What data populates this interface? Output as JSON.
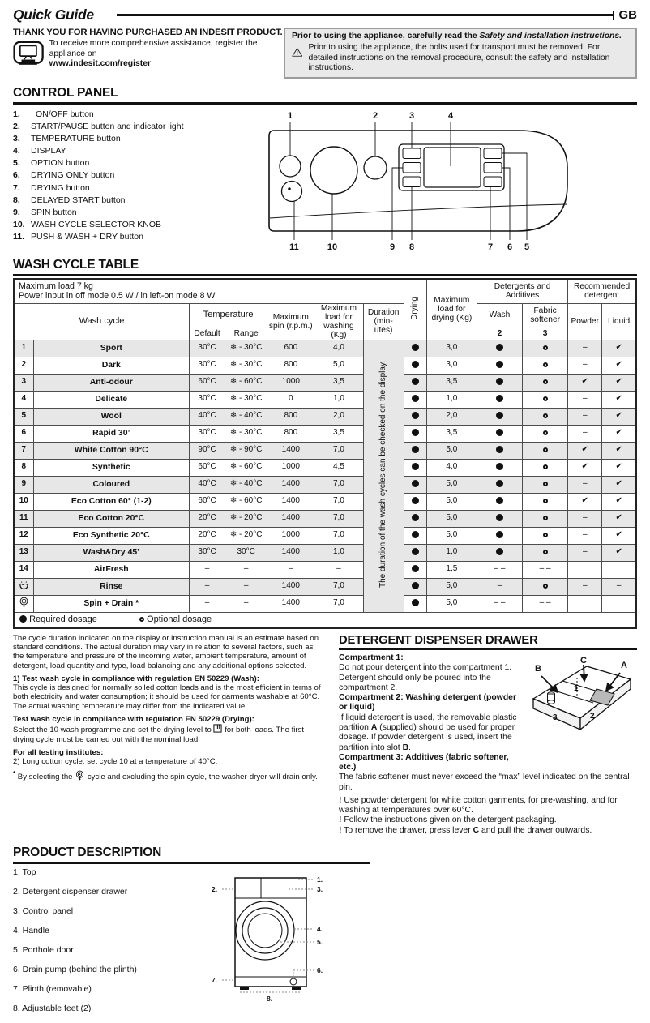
{
  "page": {
    "title": "Quick Guide",
    "region": "GB"
  },
  "intro": {
    "heading": "THANK YOU FOR HAVING PURCHASED AN INDESIT PRODUCT.",
    "register_text": "To receive more comprehensive assistance, register the appliance on",
    "register_url": "www.indesit.com/register"
  },
  "warning_box": {
    "line1_normal": "Prior to using the appliance, carefully read the ",
    "line1_italic": "Safety and installation instructions.",
    "line2": "Prior to using the appliance, the bolts used for transport must be removed. For detailed instructions on the removal procedure, consult the safety and installation instructions."
  },
  "control_panel": {
    "heading": "CONTROL PANEL",
    "items": [
      {
        "num": "1.",
        "label": "ON/OFF button"
      },
      {
        "num": "2.",
        "label": "START/PAUSE button and indicator light"
      },
      {
        "num": "3.",
        "label": "TEMPERATURE button"
      },
      {
        "num": "4.",
        "label": "DISPLAY"
      },
      {
        "num": "5.",
        "label": "OPTION button"
      },
      {
        "num": "6.",
        "label": "DRYING ONLY button"
      },
      {
        "num": "7.",
        "label": "DRYING button"
      },
      {
        "num": "8.",
        "label": "DELAYED START button"
      },
      {
        "num": "9.",
        "label": "SPIN button"
      },
      {
        "num": "10.",
        "label": "WASH CYCLE SELECTOR KNOB"
      },
      {
        "num": "11.",
        "label": "PUSH & WASH + DRY button"
      }
    ],
    "diagram_labels_top": [
      "1",
      "2",
      "3",
      "4"
    ],
    "diagram_labels_bottom": [
      "11",
      "10",
      "9",
      "8",
      "7",
      "6",
      "5"
    ]
  },
  "wash_table": {
    "heading": "WASH CYCLE TABLE",
    "banner": [
      "Maximum load 7 kg",
      "Power input in off mode 0.5 W / in left-on mode 8 W"
    ],
    "headers": {
      "wash_cycle": "Wash cycle",
      "temperature": "Temperature",
      "default": "Default",
      "range": "Range",
      "spin": "Maximum spin (r.p.m.)",
      "load_washing": "Maximum load for washing (Kg)",
      "duration": "Duration (min- utes)",
      "drying": "Drying",
      "load_drying": "Maximum load for drying (Kg)",
      "detergents": "Detergents and Additives",
      "wash": "Wash",
      "softener": "Fabric softener",
      "wash_num": "2",
      "softener_num": "3",
      "recommended": "Recommended detergent",
      "powder": "Powder",
      "liquid": "Liquid"
    },
    "duration_note": "The duration of the wash cycles can be checked on the display.",
    "rows": [
      {
        "num": "1",
        "name": "Sport",
        "default": "30°C",
        "range": "❄ - 30°C",
        "spin": "600",
        "load_wash": "4,0",
        "drying": "●",
        "load_dry": "3,0",
        "wash": "●",
        "softener": "○",
        "powder": "–",
        "liquid": "✔"
      },
      {
        "num": "2",
        "name": "Dark",
        "default": "30°C",
        "range": "❄ - 30°C",
        "spin": "800",
        "load_wash": "5,0",
        "drying": "●",
        "load_dry": "3,0",
        "wash": "●",
        "softener": "○",
        "powder": "–",
        "liquid": "✔"
      },
      {
        "num": "3",
        "name": "Anti-odour",
        "default": "60°C",
        "range": "❄ - 60°C",
        "spin": "1000",
        "load_wash": "3,5",
        "drying": "●",
        "load_dry": "3,5",
        "wash": "●",
        "softener": "○",
        "powder": "✔",
        "liquid": "✔"
      },
      {
        "num": "4",
        "name": "Delicate",
        "default": "30°C",
        "range": "❄ - 30°C",
        "spin": "0",
        "load_wash": "1,0",
        "drying": "●",
        "load_dry": "1,0",
        "wash": "●",
        "softener": "○",
        "powder": "–",
        "liquid": "✔"
      },
      {
        "num": "5",
        "name": "Wool",
        "default": "40°C",
        "range": "❄ - 40°C",
        "spin": "800",
        "load_wash": "2,0",
        "drying": "●",
        "load_dry": "2,0",
        "wash": "●",
        "softener": "○",
        "powder": "–",
        "liquid": "✔"
      },
      {
        "num": "6",
        "name": "Rapid 30’",
        "default": "30°C",
        "range": "❄ - 30°C",
        "spin": "800",
        "load_wash": "3,5",
        "drying": "●",
        "load_dry": "3,5",
        "wash": "●",
        "softener": "○",
        "powder": "–",
        "liquid": "✔"
      },
      {
        "num": "7",
        "name": "White Cotton 90°C",
        "default": "90°C",
        "range": "❄ - 90°C",
        "spin": "1400",
        "load_wash": "7,0",
        "drying": "●",
        "load_dry": "5,0",
        "wash": "●",
        "softener": "○",
        "powder": "✔",
        "liquid": "✔"
      },
      {
        "num": "8",
        "name": "Synthetic",
        "default": "60°C",
        "range": "❄ - 60°C",
        "spin": "1000",
        "load_wash": "4,5",
        "drying": "●",
        "load_dry": "4,0",
        "wash": "●",
        "softener": "○",
        "powder": "✔",
        "liquid": "✔"
      },
      {
        "num": "9",
        "name": "Coloured",
        "default": "40°C",
        "range": "❄ - 40°C",
        "spin": "1400",
        "load_wash": "7,0",
        "drying": "●",
        "load_dry": "5,0",
        "wash": "●",
        "softener": "○",
        "powder": "–",
        "liquid": "✔"
      },
      {
        "num": "10",
        "name": "Eco Cotton 60° (1-2)",
        "default": "60°C",
        "range": "❄ - 60°C",
        "spin": "1400",
        "load_wash": "7,0",
        "drying": "●",
        "load_dry": "5,0",
        "wash": "●",
        "softener": "○",
        "powder": "✔",
        "liquid": "✔"
      },
      {
        "num": "11",
        "name": "Eco Cotton 20°C",
        "default": "20°C",
        "range": "❄ - 20°C",
        "spin": "1400",
        "load_wash": "7,0",
        "drying": "●",
        "load_dry": "5,0",
        "wash": "●",
        "softener": "○",
        "powder": "–",
        "liquid": "✔"
      },
      {
        "num": "12",
        "name": "Eco Synthetic 20°C",
        "default": "20°C",
        "range": "❄ - 20°C",
        "spin": "1000",
        "load_wash": "7,0",
        "drying": "●",
        "load_dry": "5,0",
        "wash": "●",
        "softener": "○",
        "powder": "–",
        "liquid": "✔"
      },
      {
        "num": "13",
        "name": "Wash&Dry 45’",
        "default": "30°C",
        "range": "30°C",
        "spin": "1400",
        "load_wash": "1,0",
        "drying": "●",
        "load_dry": "1,0",
        "wash": "●",
        "softener": "○",
        "powder": "–",
        "liquid": "✔"
      },
      {
        "num": "14",
        "name": "AirFresh",
        "default": "–",
        "range": "–",
        "spin": "–",
        "load_wash": "–",
        "drying": "●",
        "load_dry": "1,5",
        "wash": "– –",
        "softener": "– –",
        "powder": "",
        "liquid": ""
      },
      {
        "icon": "rinse-icon",
        "name": "Rinse",
        "default": "–",
        "range": "–",
        "spin": "1400",
        "load_wash": "7,0",
        "drying": "●",
        "load_dry": "5,0",
        "wash": "–",
        "softener": "○",
        "powder": "–",
        "liquid": "–"
      },
      {
        "icon": "spin-drain-icon",
        "name": "Spin + Drain *",
        "default": "–",
        "range": "–",
        "spin": "1400",
        "load_wash": "7,0",
        "drying": "●",
        "load_dry": "5,0",
        "wash": "– –",
        "softener": "– –",
        "powder": "",
        "liquid": ""
      }
    ],
    "legend": {
      "required": "Required dosage",
      "optional": "Optional dosage"
    }
  },
  "notes": {
    "p1": "The cycle duration indicated on the display or instruction manual is an estimate based on standard conditions. The actual duration may vary in relation to several factors, such as the temperature and pressure of the incoming water, ambient temperature, amount of detergent, load quantity and type, load balancing and any additional options selected.",
    "wash_title": "1) Test wash cycle in compliance with regulation EN 50229 (Wash):",
    "wash_body": "This cycle is designed for normally soiled cotton loads and is the most efficient in terms of both electricity and water consumption; it should be used for garments washable at 60°C. The actual washing temperature may differ from the indicated value.",
    "dry_title": "Test wash cycle in compliance with regulation EN 50229 (Drying):",
    "dry_body_pre": "Select the 10 wash programme and set the drying level to ",
    "dry_body_post": " for both loads. The first drying cycle must be carried out with the nominal load.",
    "inst_title": "For all testing institutes:",
    "inst_line": "2)  Long cotton cycle: set cycle 10 at a temperature of 40°C.",
    "star_mark": "*",
    "star_pre": " By selecting the ",
    "star_post": " cycle and excluding the spin cycle, the washer-dryer will drain only."
  },
  "detergent": {
    "heading": "DETERGENT DISPENSER DRAWER",
    "c1_title": "Compartment 1:",
    "c1_body": "Do not pour detergent into the compartment 1. Detergent should only be poured into the compartment 2.",
    "c2_title": "Compartment 2: Washing detergent (powder or liquid)",
    "c2_pre": "If liquid detergent is used, the removable plastic partition ",
    "c2_a": "A",
    "c2_mid": " (supplied) should be used for proper dosage. If powder detergent is used, insert the partition into slot ",
    "c2_b": "B",
    "c2_end": ".",
    "c3_title": "Compartment 3: Additives (fabric softener, etc.)",
    "c3_body": "The fabric softener must never exceed the “max” level indicated on the central pin.",
    "bang": "!",
    "note1": " Use powder detergent for white cotton garments, for pre-washing, and for washing at temperatures over 60°C.",
    "note2": " Follow the instructions given on the detergent packaging.",
    "note3_pre": " To remove the drawer, press lever ",
    "note3_c": "C",
    "note3_post": " and pull the drawer outwards.",
    "diagram": {
      "a": "A",
      "b": "B",
      "c": "C",
      "n1": "1",
      "n2": "2",
      "n3": "3"
    }
  },
  "product": {
    "heading": "PRODUCT DESCRIPTION",
    "items": [
      {
        "num": "1.",
        "label": "Top"
      },
      {
        "num": "2.",
        "label": "Detergent dispenser drawer"
      },
      {
        "num": "3.",
        "label": "Control panel"
      },
      {
        "num": "4.",
        "label": "Handle"
      },
      {
        "num": "5.",
        "label": "Porthole door"
      },
      {
        "num": "6.",
        "label": "Drain pump (behind the plinth)"
      },
      {
        "num": "7.",
        "label": "Plinth (removable)"
      },
      {
        "num": "8.",
        "label": "Adjustable feet (2)"
      }
    ],
    "callouts": [
      "1.",
      "2.",
      "3.",
      "4.",
      "5.",
      "6.",
      "7.",
      "8."
    ]
  }
}
